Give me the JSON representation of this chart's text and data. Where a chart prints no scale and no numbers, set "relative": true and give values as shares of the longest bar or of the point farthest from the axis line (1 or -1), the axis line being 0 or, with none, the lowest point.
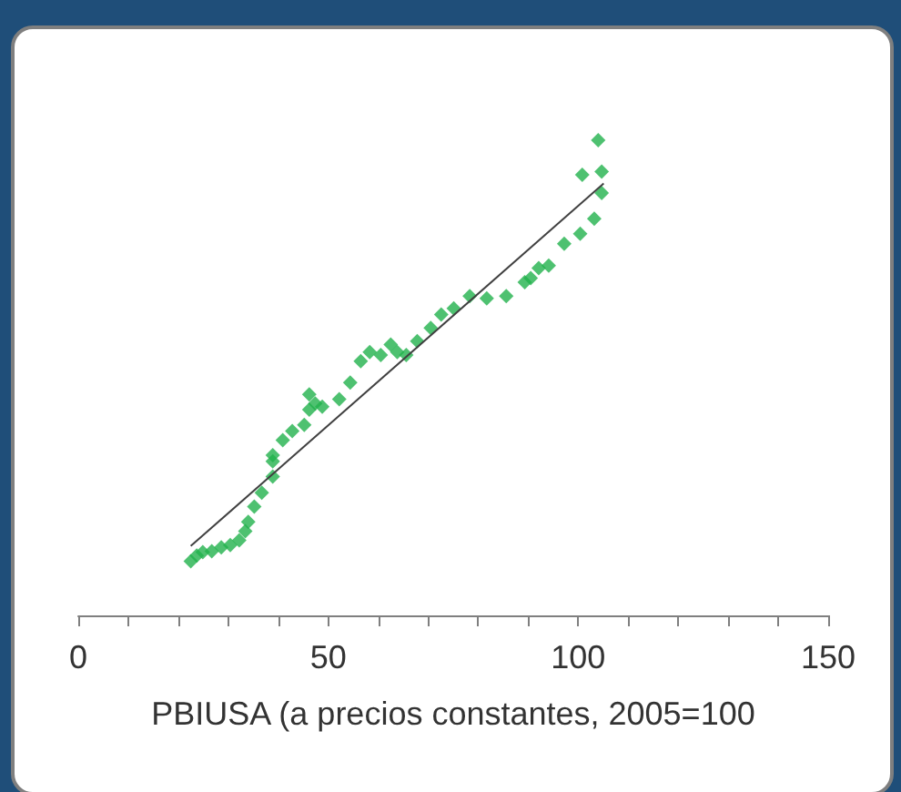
{
  "chart_data": {
    "type": "scatter",
    "xlabel": "PBIUSA (a precios constantes, 2005=100",
    "relative": true,
    "marker": "diamond",
    "xlim": [
      0,
      150
    ],
    "xticks": [
      0,
      {
        "value": 10,
        "label": null
      },
      {
        "value": 20,
        "label": null
      },
      {
        "value": 30,
        "label": null
      },
      {
        "value": 40,
        "label": null
      },
      50,
      {
        "value": 60,
        "label": null
      },
      {
        "value": 70,
        "label": null
      },
      {
        "value": 80,
        "label": null
      },
      {
        "value": 90,
        "label": null
      },
      100,
      {
        "value": 110,
        "label": null
      },
      {
        "value": 120,
        "label": null
      },
      {
        "value": 130,
        "label": null
      },
      {
        "value": 140,
        "label": null
      },
      150
    ],
    "series": [
      {
        "color": "#22b14c",
        "x": [
          22.5,
          23.7,
          24.9,
          26.7,
          28.6,
          30.4,
          32.2,
          33.4,
          34.0,
          35.2,
          36.7,
          38.9,
          38.9,
          38.9,
          40.9,
          42.8,
          45.2,
          46.2,
          46.2,
          47.4,
          48.8,
          52.2,
          54.4,
          56.5,
          58.3,
          60.5,
          62.5,
          63.8,
          65.6,
          67.8,
          70.5,
          72.6,
          75.1,
          78.3,
          81.7,
          85.6,
          89.3,
          90.5,
          92.1,
          94.1,
          97.2,
          100.4,
          103.2,
          104.7,
          100.8,
          104.7,
          104.0
        ],
        "values": [
          0.114,
          0.126,
          0.133,
          0.135,
          0.143,
          0.148,
          0.158,
          0.177,
          0.197,
          0.229,
          0.258,
          0.292,
          0.324,
          0.337,
          0.369,
          0.388,
          0.401,
          0.433,
          0.465,
          0.446,
          0.439,
          0.455,
          0.49,
          0.535,
          0.554,
          0.548,
          0.57,
          0.554,
          0.548,
          0.577,
          0.605,
          0.633,
          0.646,
          0.672,
          0.667,
          0.672,
          0.701,
          0.71,
          0.731,
          0.736,
          0.782,
          0.803,
          0.835,
          0.889,
          0.927,
          0.934,
          1
        ]
      },
      {
        "type": "line",
        "marker": "none",
        "color": "#404040",
        "x": [
          22.5,
          105.1
        ],
        "values": [
          0.146,
          0.909
        ]
      }
    ]
  }
}
